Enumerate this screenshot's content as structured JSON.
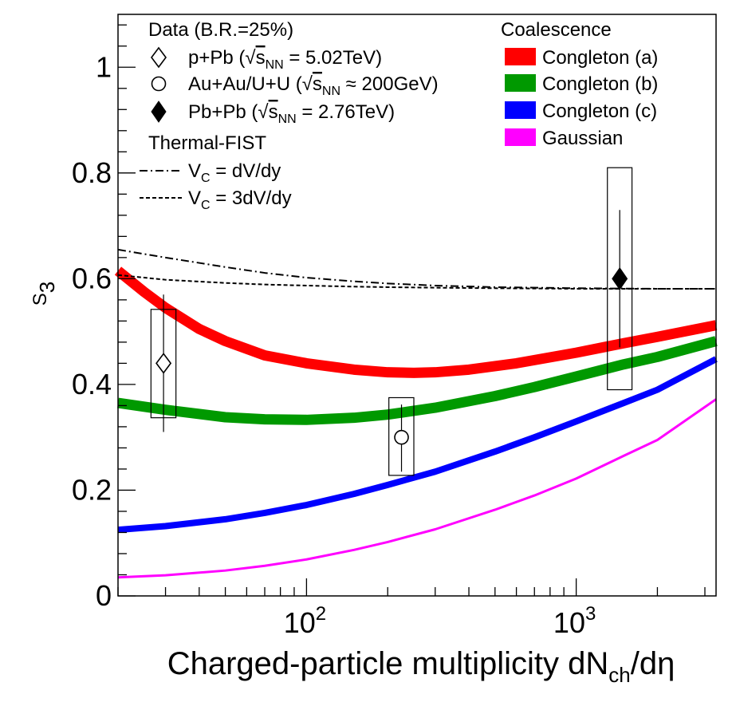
{
  "chart_data": {
    "type": "line",
    "title": "",
    "xlabel": "Charged-particle multiplicity dN",
    "xlabel_sub": "ch",
    "xlabel_tail": "/dη",
    "ylabel": "S",
    "ylabel_sub": "3",
    "xscale": "log",
    "xlim": [
      20,
      3300
    ],
    "ylim": [
      0,
      1.1
    ],
    "yticks": [
      0,
      0.2,
      0.4,
      0.6,
      0.8,
      1
    ],
    "yticklabels": [
      "0",
      "0.2",
      "0.4",
      "0.6",
      "0.8",
      "1"
    ],
    "xticks_major": [
      100,
      1000
    ],
    "xticklabels": [
      {
        "base": "10",
        "exp": "2"
      },
      {
        "base": "10",
        "exp": "3"
      }
    ],
    "legend_data": {
      "header": "Data (B.R.=25%)",
      "entries": [
        {
          "marker": "open-diamond",
          "label_pre": "p+Pb (",
          "sqrt": "s",
          "sub": "NN",
          "label_post": " = 5.02TeV)"
        },
        {
          "marker": "open-circle",
          "label_pre": "Au+Au/U+U (",
          "sqrt": "s",
          "sub": "NN",
          "label_post": " ≈ 200GeV)"
        },
        {
          "marker": "filled-diamond",
          "label_pre": "Pb+Pb (",
          "sqrt": "s",
          "sub": "NN",
          "label_post": " = 2.76TeV)"
        }
      ]
    },
    "legend_thermal": {
      "header": "Thermal-FIST",
      "entries": [
        {
          "style": "dash-dot",
          "pre": "V",
          "sub": "C",
          "post": " = dV/dy"
        },
        {
          "style": "dashed",
          "pre": "V",
          "sub": "C",
          "post": " = 3dV/dy"
        }
      ]
    },
    "legend_coal": {
      "header": "Coalescence",
      "entries": [
        {
          "label": "Congleton (a)",
          "color": "#ff0000"
        },
        {
          "label": "Congleton (b)",
          "color": "#009900"
        },
        {
          "label": "Congleton (c)",
          "color": "#0000ff"
        },
        {
          "label": "Gaussian",
          "color": "#ff00ff"
        }
      ]
    },
    "series": [
      {
        "name": "Congleton (a)",
        "color": "#ff0000",
        "width": 13,
        "x": [
          20,
          25,
          30,
          40,
          50,
          70,
          100,
          150,
          200,
          250,
          300,
          400,
          600,
          1000,
          1500,
          2000,
          3300
        ],
        "y": [
          0.615,
          0.575,
          0.545,
          0.505,
          0.482,
          0.455,
          0.44,
          0.428,
          0.423,
          0.422,
          0.423,
          0.428,
          0.44,
          0.46,
          0.478,
          0.49,
          0.512
        ]
      },
      {
        "name": "Congleton (b)",
        "color": "#009900",
        "width": 13,
        "x": [
          20,
          30,
          50,
          70,
          100,
          150,
          200,
          300,
          500,
          700,
          1000,
          1500,
          2000,
          3300
        ],
        "y": [
          0.365,
          0.352,
          0.338,
          0.334,
          0.333,
          0.337,
          0.343,
          0.356,
          0.378,
          0.395,
          0.415,
          0.438,
          0.452,
          0.482
        ]
      },
      {
        "name": "Congleton (c)",
        "color": "#0000ff",
        "width": 8,
        "x": [
          20,
          30,
          50,
          70,
          100,
          150,
          200,
          300,
          500,
          700,
          1000,
          1500,
          2000,
          3300
        ],
        "y": [
          0.125,
          0.132,
          0.145,
          0.157,
          0.172,
          0.193,
          0.21,
          0.235,
          0.273,
          0.3,
          0.33,
          0.365,
          0.39,
          0.448
        ]
      },
      {
        "name": "Gaussian",
        "color": "#ff00ff",
        "width": 3,
        "x": [
          20,
          30,
          50,
          70,
          100,
          150,
          200,
          300,
          500,
          700,
          1000,
          1500,
          2000,
          3300
        ],
        "y": [
          0.035,
          0.039,
          0.048,
          0.057,
          0.069,
          0.087,
          0.102,
          0.126,
          0.163,
          0.19,
          0.222,
          0.265,
          0.295,
          0.372
        ]
      },
      {
        "name": "Thermal-FIST VC = dV/dy",
        "color": "#000000",
        "width": 2,
        "dash": "10,4,2,4",
        "x": [
          20,
          30,
          50,
          70,
          100,
          150,
          200,
          300,
          500,
          1000,
          2000,
          3300
        ],
        "y": [
          0.655,
          0.64,
          0.622,
          0.611,
          0.602,
          0.595,
          0.591,
          0.587,
          0.584,
          0.582,
          0.581,
          0.581
        ]
      },
      {
        "name": "Thermal-FIST VC = 3dV/dy",
        "color": "#000000",
        "width": 2,
        "dash": "5,3",
        "x": [
          20,
          30,
          50,
          70,
          100,
          150,
          200,
          300,
          500,
          1000,
          2000,
          3300
        ],
        "y": [
          0.607,
          0.598,
          0.592,
          0.589,
          0.587,
          0.585,
          0.584,
          0.583,
          0.582,
          0.581,
          0.581,
          0.581
        ]
      }
    ],
    "points": [
      {
        "name": "p+Pb",
        "marker": "open-diamond",
        "x": 29.5,
        "y": 0.44,
        "stat_lo": 0.31,
        "stat_hi": 0.57,
        "sys_lo": 0.337,
        "sys_hi": 0.542,
        "sys_xlo": 26.5,
        "sys_xhi": 32.8
      },
      {
        "name": "Au+Au/U+U",
        "marker": "open-circle",
        "x": 225,
        "y": 0.3,
        "stat_lo": 0.235,
        "stat_hi": 0.362,
        "sys_lo": 0.228,
        "sys_hi": 0.375,
        "sys_xlo": 202,
        "sys_xhi": 250
      },
      {
        "name": "Pb+Pb",
        "marker": "filled-diamond",
        "x": 1450,
        "y": 0.6,
        "stat_lo": 0.47,
        "stat_hi": 0.73,
        "sys_lo": 0.39,
        "sys_hi": 0.81,
        "sys_xlo": 1305,
        "sys_xhi": 1610
      }
    ]
  }
}
